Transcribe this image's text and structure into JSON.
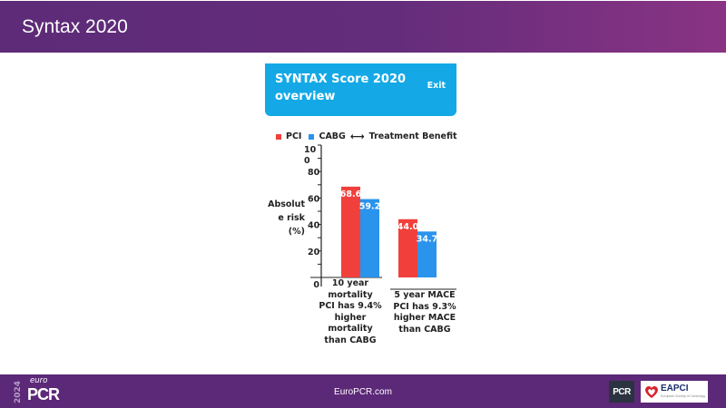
{
  "header": {
    "title": "Syntax 2020"
  },
  "card": {
    "title": "SYNTAX Score 2020 overview",
    "exit_label": "Exit"
  },
  "colors": {
    "pci": "#f1403b",
    "cabg": "#2a93ec",
    "header": "#5d2b78",
    "card": "#14a9e6",
    "footer": "#5c2878"
  },
  "legend": {
    "pci": "PCI",
    "cabg": "CABG",
    "arrow": "⟷",
    "benefit": "Treatment Benefit"
  },
  "chart_data": {
    "type": "bar",
    "ylabel": "Absolute risk(%)",
    "ylim": [
      0,
      100
    ],
    "yticks": [
      0,
      20,
      40,
      60,
      80,
      100
    ],
    "ytick_labels": [
      "0",
      "20",
      "40",
      "60",
      "80",
      "100"
    ],
    "categories": [
      "10 year mortality PCI has 9.4% higher mortality than CABG",
      "5 year MACE PCI has 9.3% higher MACE than CABG"
    ],
    "category_lines": [
      [
        "10 year",
        "mortality",
        "PCI has 9.4%",
        "higher",
        "mortality",
        "than CABG"
      ],
      [
        "5 year MACE",
        "PCI has 9.3%",
        "higher MACE",
        "than CABG"
      ]
    ],
    "series": [
      {
        "name": "PCI",
        "values": [
          68.6,
          44.0
        ],
        "labels": [
          "68.6",
          "44.0"
        ]
      },
      {
        "name": "CABG",
        "values": [
          59.2,
          34.7
        ],
        "labels": [
          "59.2",
          "34.7"
        ]
      }
    ]
  },
  "footer": {
    "year": "2024",
    "brand_small": "euro",
    "brand": "PCR",
    "url": "EuroPCR.com",
    "partner1": "PCR",
    "partner2": "EAPCI",
    "partner2_sub": "European Society of Cardiology"
  }
}
